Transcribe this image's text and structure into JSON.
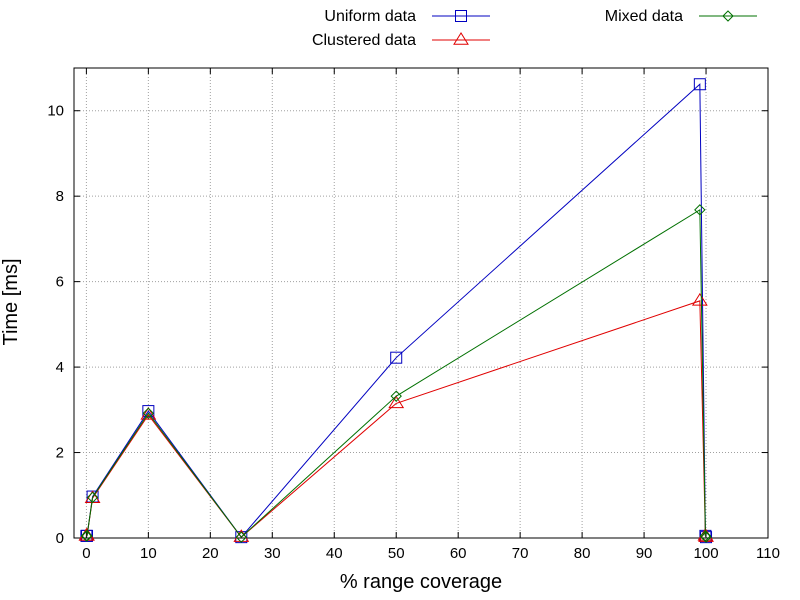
{
  "chart_data": {
    "type": "line",
    "xlabel": "% range coverage",
    "ylabel": "Time [ms]",
    "xlim": [
      -2,
      110
    ],
    "ylim": [
      0,
      11
    ],
    "xticks": [
      0,
      10,
      20,
      30,
      40,
      50,
      60,
      70,
      80,
      90,
      100,
      110
    ],
    "yticks": [
      0,
      2,
      4,
      6,
      8,
      10
    ],
    "grid": true,
    "legend_placement": "top",
    "series": [
      {
        "name": "Uniform data",
        "color": "#0000c0",
        "marker": "square",
        "x": [
          0,
          0.1,
          1,
          10,
          25,
          50,
          99,
          99.9,
          100
        ],
        "y": [
          0.05,
          0.05,
          0.97,
          2.97,
          0.02,
          4.22,
          10.62,
          0.05,
          0.02
        ]
      },
      {
        "name": "Clustered data",
        "color": "#e00000",
        "marker": "triangle",
        "x": [
          0,
          0.1,
          1,
          10,
          25,
          50,
          99,
          99.9,
          100
        ],
        "y": [
          0.05,
          0.05,
          0.93,
          2.88,
          0.02,
          3.15,
          5.55,
          0.05,
          0.02
        ]
      },
      {
        "name": "Mixed data",
        "color": "#007000",
        "marker": "diamond",
        "x": [
          0,
          0.1,
          1,
          10,
          25,
          50,
          99,
          99.9,
          100
        ],
        "y": [
          0.05,
          0.05,
          0.95,
          2.92,
          0.02,
          3.32,
          7.68,
          0.05,
          0.02
        ]
      }
    ]
  }
}
